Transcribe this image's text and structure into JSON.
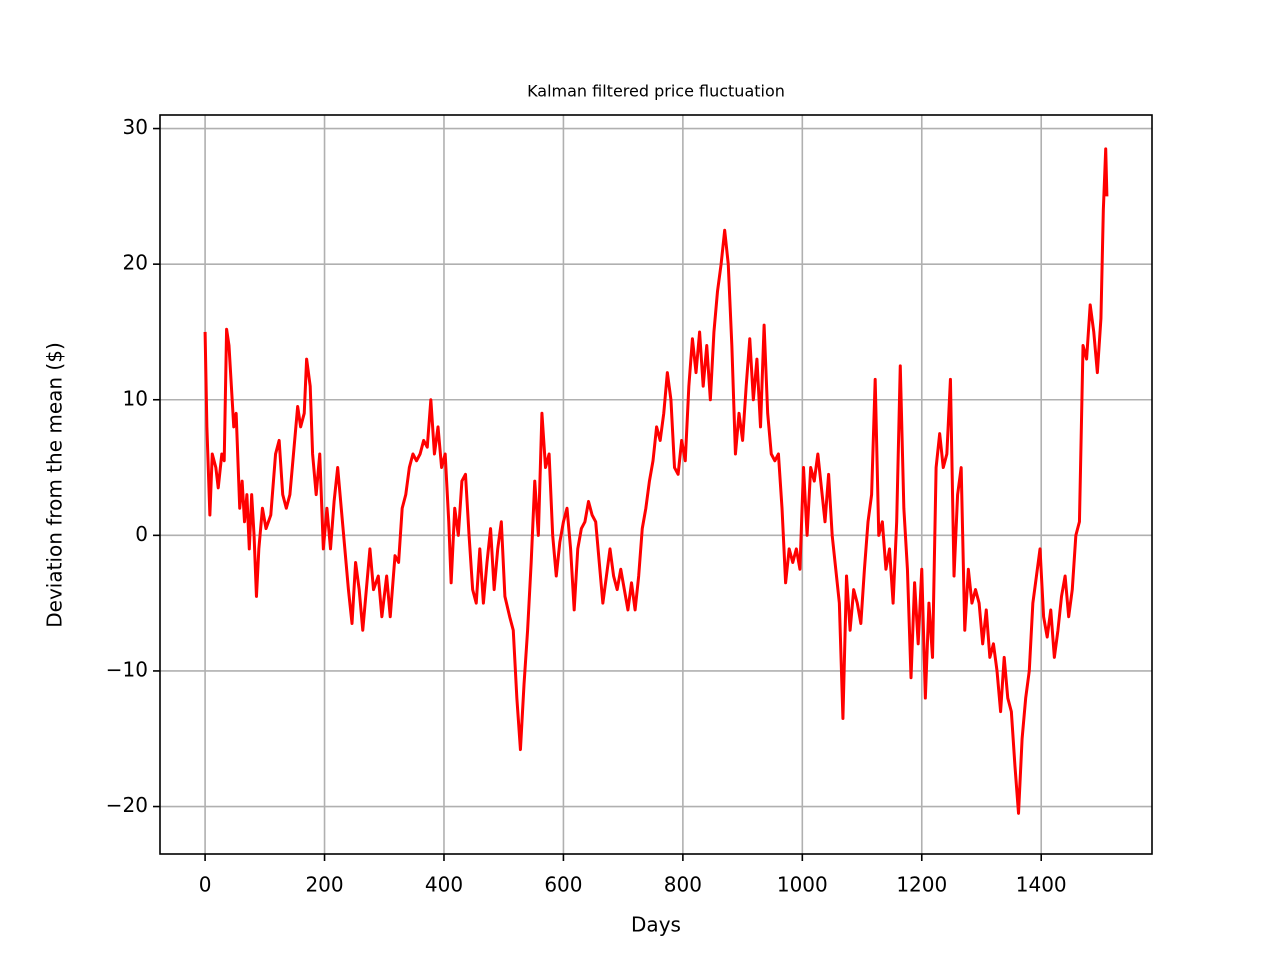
{
  "chart_data": {
    "type": "line",
    "title": "Kalman filtered price fluctuation",
    "xlabel": "Days",
    "ylabel": "Deviation from the mean ($)",
    "x": [
      0,
      3,
      8,
      12,
      18,
      22,
      28,
      32,
      36,
      40,
      44,
      48,
      52,
      58,
      62,
      66,
      70,
      74,
      78,
      82,
      86,
      90,
      96,
      102,
      110,
      118,
      124,
      130,
      136,
      142,
      148,
      155,
      160,
      166,
      170,
      176,
      180,
      186,
      192,
      198,
      204,
      210,
      216,
      222,
      228,
      234,
      240,
      246,
      252,
      258,
      264,
      270,
      276,
      282,
      290,
      296,
      304,
      310,
      318,
      324,
      330,
      336,
      342,
      348,
      354,
      360,
      366,
      372,
      378,
      384,
      390,
      396,
      402,
      408,
      412,
      418,
      424,
      430,
      436,
      442,
      448,
      454,
      460,
      466,
      472,
      478,
      484,
      490,
      496,
      502,
      510,
      516,
      522,
      528,
      534,
      540,
      546,
      552,
      558,
      564,
      570,
      576,
      582,
      588,
      594,
      600,
      606,
      612,
      618,
      624,
      630,
      636,
      642,
      648,
      654,
      660,
      666,
      672,
      678,
      684,
      690,
      696,
      702,
      708,
      714,
      720,
      726,
      732,
      738,
      744,
      750,
      756,
      762,
      768,
      774,
      780,
      786,
      792,
      798,
      804,
      810,
      816,
      822,
      828,
      834,
      840,
      846,
      852,
      858,
      864,
      870,
      876,
      882,
      888,
      894,
      900,
      906,
      912,
      918,
      924,
      930,
      936,
      942,
      948,
      954,
      960,
      966,
      972,
      978,
      984,
      990,
      996,
      1002,
      1008,
      1014,
      1020,
      1026,
      1032,
      1038,
      1044,
      1050,
      1056,
      1062,
      1068,
      1074,
      1080,
      1086,
      1092,
      1098,
      1104,
      1110,
      1116,
      1122,
      1128,
      1134,
      1140,
      1146,
      1152,
      1158,
      1164,
      1170,
      1176,
      1182,
      1188,
      1194,
      1200,
      1206,
      1212,
      1218,
      1224,
      1230,
      1236,
      1242,
      1248,
      1254,
      1260,
      1266,
      1272,
      1278,
      1284,
      1290,
      1296,
      1302,
      1308,
      1314,
      1320,
      1326,
      1332,
      1338,
      1344,
      1350,
      1356,
      1362,
      1368,
      1374,
      1380,
      1386,
      1392,
      1398,
      1404,
      1410,
      1416,
      1422,
      1428,
      1434,
      1440,
      1446,
      1452,
      1458,
      1464,
      1470,
      1476,
      1482,
      1488,
      1494,
      1500,
      1504,
      1508,
      1510
    ],
    "series": [
      {
        "name": "Kalman filtered",
        "color": "#ff0000",
        "values": [
          15,
          8,
          1.5,
          6,
          5,
          3.5,
          6,
          5.5,
          15.2,
          14,
          11,
          8,
          9,
          2,
          4,
          1,
          3,
          -1,
          3,
          0,
          -4.5,
          -1,
          2,
          0.5,
          1.5,
          6,
          7,
          3,
          2,
          3,
          6,
          9.5,
          8,
          9,
          13,
          11,
          6,
          3,
          6,
          -1,
          2,
          -1,
          2.5,
          5,
          2,
          -1,
          -4,
          -6.5,
          -2,
          -4,
          -7,
          -4,
          -1,
          -4,
          -3,
          -6,
          -3,
          -6,
          -1.5,
          -2,
          2,
          3,
          5,
          6,
          5.5,
          6,
          7,
          6.5,
          10,
          6,
          8,
          5,
          6,
          1,
          -3.5,
          2,
          0,
          4,
          4.5,
          0,
          -4,
          -5,
          -1,
          -5,
          -2,
          0.5,
          -4,
          -1,
          1,
          -4.5,
          -6,
          -7,
          -12,
          -15.8,
          -11,
          -7,
          -2,
          4,
          0,
          9,
          5,
          6,
          0,
          -3,
          -0.5,
          1,
          2,
          -1,
          -5.5,
          -1,
          0.5,
          1,
          2.5,
          1.5,
          1,
          -2,
          -5,
          -3,
          -1,
          -3,
          -4,
          -2.5,
          -4,
          -5.5,
          -3.5,
          -5.5,
          -3,
          0.5,
          2,
          4,
          5.5,
          8,
          7,
          9,
          12,
          10,
          5,
          4.5,
          7,
          5.5,
          11,
          14.5,
          12,
          15,
          11,
          14,
          10,
          15,
          18,
          20,
          22.5,
          20,
          14,
          6,
          9,
          7,
          11,
          14.5,
          10,
          13,
          8,
          15.5,
          9,
          6,
          5.5,
          6,
          2,
          -3.5,
          -1,
          -2,
          -1,
          -2.5,
          5,
          0,
          5,
          4,
          6,
          3.5,
          1,
          4.5,
          0,
          -2.5,
          -5,
          -13.5,
          -3,
          -7,
          -4,
          -5,
          -6.5,
          -2.5,
          1,
          3,
          11.5,
          0,
          1,
          -2.5,
          -1,
          -5,
          1,
          12.5,
          2,
          -2.5,
          -10.5,
          -3.5,
          -8,
          -2.5,
          -12,
          -5,
          -9,
          5,
          7.5,
          5,
          6,
          11.5,
          -3,
          3,
          5,
          -7,
          -2.5,
          -5,
          -4,
          -5,
          -8,
          -5.5,
          -9,
          -8,
          -10,
          -13,
          -9,
          -12,
          -13,
          -17,
          -20.5,
          -15,
          -12,
          -10,
          -5,
          -3,
          -1,
          -6,
          -7.5,
          -5.5,
          -9,
          -7,
          -4.5,
          -3,
          -6,
          -4,
          0,
          1,
          14,
          13,
          17,
          15,
          12,
          16,
          24,
          28.5,
          25
        ]
      }
    ],
    "xlim": [
      -75.5,
      1585.5
    ],
    "ylim": [
      -23.5,
      31.0
    ],
    "xticks": [
      0,
      200,
      400,
      600,
      800,
      1000,
      1200,
      1400
    ],
    "yticks": [
      {
        "value": -20,
        "label": "−20"
      },
      {
        "value": -10,
        "label": "−10"
      },
      0,
      10,
      20,
      30
    ],
    "grid": true
  }
}
